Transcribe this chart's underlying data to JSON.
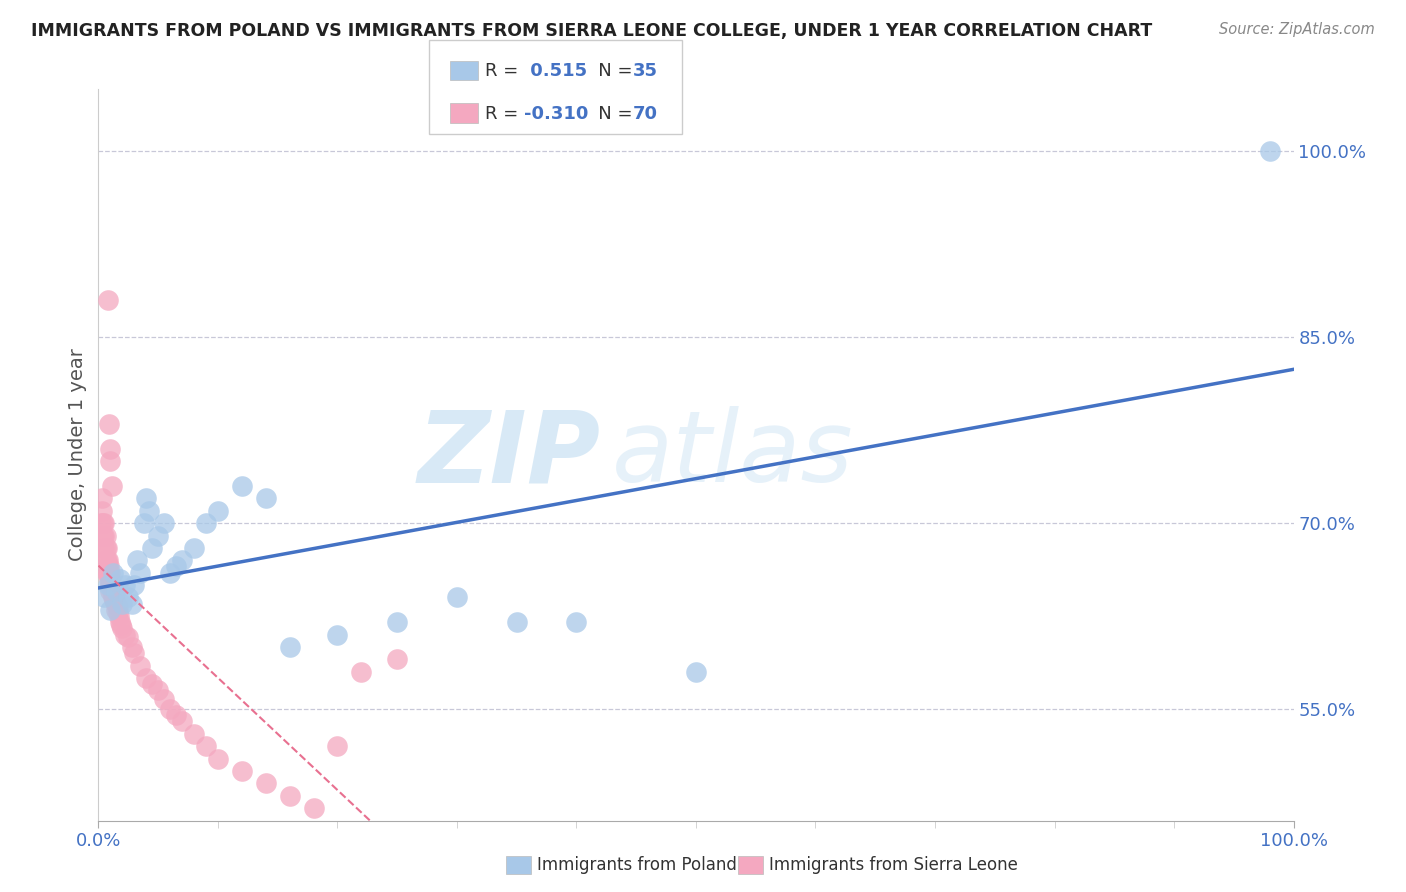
{
  "title": "IMMIGRANTS FROM POLAND VS IMMIGRANTS FROM SIERRA LEONE COLLEGE, UNDER 1 YEAR CORRELATION CHART",
  "source": "Source: ZipAtlas.com",
  "ylabel": "College, Under 1 year",
  "watermark_zip": "ZIP",
  "watermark_atlas": "atlas",
  "poland_color": "#a8c8e8",
  "sierra_leone_color": "#f4a8c0",
  "poland_line_color": "#4472c4",
  "sierra_leone_line_color": "#e87090",
  "grid_color": "#c8c8d8",
  "background_color": "#ffffff",
  "poland_R": 0.515,
  "poland_N": 35,
  "sierra_leone_R": -0.31,
  "sierra_leone_N": 70,
  "yticks": [
    0.55,
    0.7,
    0.85,
    1.0
  ],
  "ytick_labels": [
    "55.0%",
    "70.0%",
    "85.0%",
    "100.0%"
  ],
  "xtick_labels_pos": [
    0.0,
    1.0
  ],
  "xtick_labels": [
    "0.0%",
    "100.0%"
  ],
  "xlim": [
    0.0,
    1.0
  ],
  "ylim": [
    0.46,
    1.05
  ],
  "poland_scatter_x": [
    0.005,
    0.008,
    0.01,
    0.012,
    0.015,
    0.018,
    0.02,
    0.022,
    0.025,
    0.028,
    0.03,
    0.032,
    0.035,
    0.038,
    0.04,
    0.042,
    0.045,
    0.05,
    0.055,
    0.06,
    0.065,
    0.07,
    0.08,
    0.09,
    0.1,
    0.12,
    0.14,
    0.16,
    0.2,
    0.25,
    0.3,
    0.35,
    0.4,
    0.5,
    0.98
  ],
  "poland_scatter_y": [
    0.64,
    0.65,
    0.63,
    0.66,
    0.645,
    0.655,
    0.635,
    0.65,
    0.64,
    0.635,
    0.65,
    0.67,
    0.66,
    0.7,
    0.72,
    0.71,
    0.68,
    0.69,
    0.7,
    0.66,
    0.665,
    0.67,
    0.68,
    0.7,
    0.71,
    0.73,
    0.72,
    0.6,
    0.61,
    0.62,
    0.64,
    0.62,
    0.62,
    0.58,
    1.0
  ],
  "sierra_leone_scatter_x": [
    0.002,
    0.003,
    0.003,
    0.004,
    0.004,
    0.005,
    0.005,
    0.005,
    0.006,
    0.006,
    0.006,
    0.007,
    0.007,
    0.007,
    0.008,
    0.008,
    0.008,
    0.009,
    0.009,
    0.009,
    0.01,
    0.01,
    0.01,
    0.01,
    0.01,
    0.011,
    0.011,
    0.011,
    0.012,
    0.012,
    0.013,
    0.013,
    0.013,
    0.014,
    0.014,
    0.015,
    0.015,
    0.016,
    0.016,
    0.017,
    0.018,
    0.019,
    0.02,
    0.022,
    0.025,
    0.028,
    0.03,
    0.035,
    0.04,
    0.045,
    0.05,
    0.055,
    0.06,
    0.065,
    0.07,
    0.08,
    0.09,
    0.1,
    0.12,
    0.14,
    0.16,
    0.18,
    0.2,
    0.22,
    0.25,
    0.008,
    0.009,
    0.01,
    0.01,
    0.011
  ],
  "sierra_leone_scatter_y": [
    0.7,
    0.71,
    0.72,
    0.69,
    0.7,
    0.68,
    0.69,
    0.7,
    0.67,
    0.68,
    0.69,
    0.66,
    0.67,
    0.68,
    0.66,
    0.665,
    0.67,
    0.655,
    0.66,
    0.665,
    0.65,
    0.655,
    0.66,
    0.65,
    0.645,
    0.645,
    0.648,
    0.65,
    0.64,
    0.642,
    0.638,
    0.642,
    0.646,
    0.636,
    0.64,
    0.63,
    0.635,
    0.628,
    0.632,
    0.625,
    0.62,
    0.618,
    0.615,
    0.61,
    0.608,
    0.6,
    0.595,
    0.585,
    0.575,
    0.57,
    0.565,
    0.558,
    0.55,
    0.545,
    0.54,
    0.53,
    0.52,
    0.51,
    0.5,
    0.49,
    0.48,
    0.47,
    0.52,
    0.58,
    0.59,
    0.88,
    0.78,
    0.76,
    0.75,
    0.73
  ]
}
